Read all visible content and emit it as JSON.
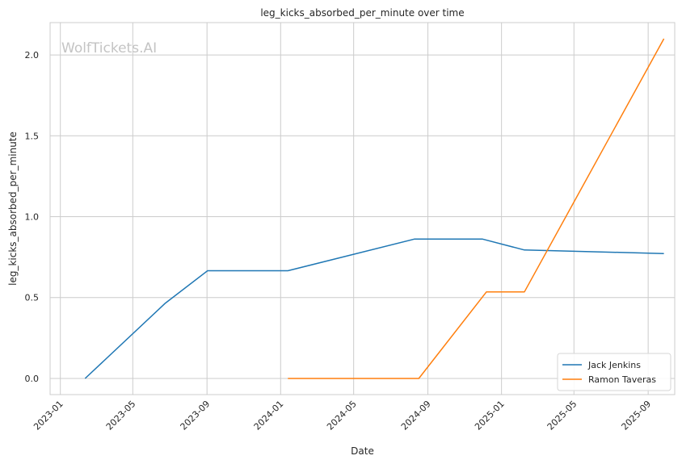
{
  "chart_data": {
    "type": "line",
    "title": "leg_kicks_absorbed_per_minute over time",
    "xlabel": "Date",
    "ylabel": "leg_kicks_absorbed_per_minute",
    "watermark": "WolfTickets.AI",
    "x_ticks": [
      "2023-01",
      "2023-05",
      "2023-09",
      "2024-01",
      "2024-05",
      "2024-09",
      "2025-01",
      "2025-05",
      "2025-09"
    ],
    "y_ticks": [
      "0.0",
      "0.5",
      "1.0",
      "1.5",
      "2.0"
    ],
    "xlim": [
      "2022-12-15",
      "2025-10-15"
    ],
    "ylim": [
      -0.1,
      2.2
    ],
    "grid": true,
    "legend_position": "bottom-right",
    "series": [
      {
        "name": "Jack Jenkins",
        "color": "#1f77b4",
        "points": [
          {
            "x": "2023-02-11",
            "y": 0.0
          },
          {
            "x": "2023-06-24",
            "y": 0.466
          },
          {
            "x": "2023-09-02",
            "y": 0.666
          },
          {
            "x": "2024-01-13",
            "y": 0.666
          },
          {
            "x": "2024-08-10",
            "y": 0.862
          },
          {
            "x": "2024-11-30",
            "y": 0.862
          },
          {
            "x": "2025-02-08",
            "y": 0.794
          },
          {
            "x": "2025-09-27",
            "y": 0.772
          }
        ]
      },
      {
        "name": "Ramon Taveras",
        "color": "#ff7f0e",
        "points": [
          {
            "x": "2024-01-13",
            "y": 0.0
          },
          {
            "x": "2024-08-17",
            "y": 0.0
          },
          {
            "x": "2024-12-07",
            "y": 0.535
          },
          {
            "x": "2025-02-08",
            "y": 0.535
          },
          {
            "x": "2025-09-27",
            "y": 2.1
          }
        ]
      }
    ]
  }
}
